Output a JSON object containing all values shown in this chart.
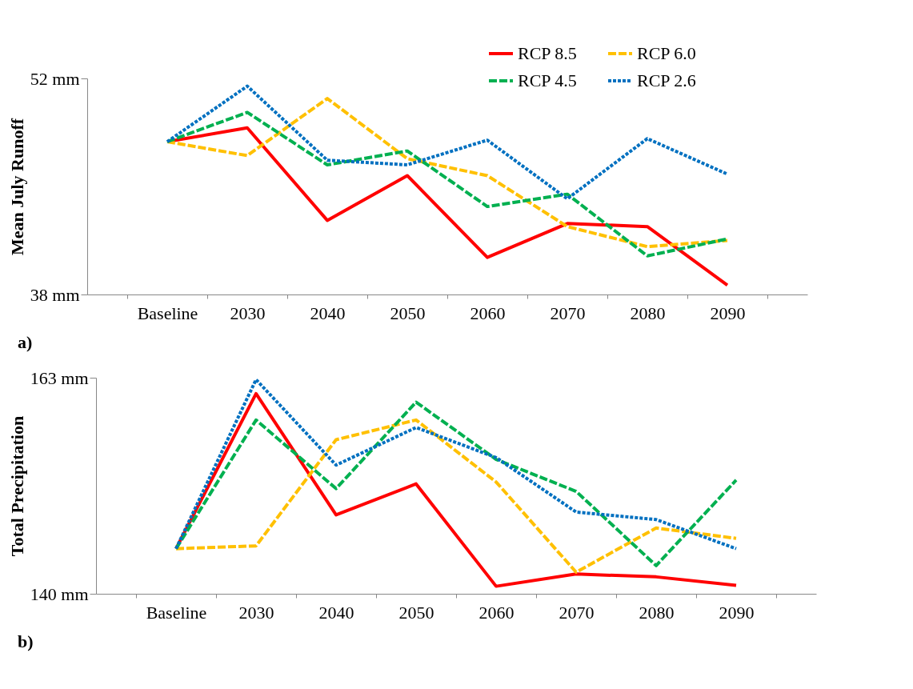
{
  "chart_data": [
    {
      "type": "line",
      "ylabel": "Mean July Runoff",
      "categories": [
        "Baseline",
        "2030",
        "2040",
        "2050",
        "2060",
        "2070",
        "2080",
        "2090"
      ],
      "ylim": [
        38,
        52
      ],
      "yticks": [
        {
          "value": 38,
          "label": "38 mm"
        },
        {
          "value": 52,
          "label": "52 mm"
        }
      ],
      "legend": "top right",
      "annotations": [
        "a)"
      ],
      "series": [
        {
          "name": "RCP 8.5",
          "color": "#ff0000",
          "line_style": "solid",
          "values": [
            47.9,
            48.8,
            42.8,
            45.7,
            40.4,
            42.6,
            42.4,
            38.6
          ]
        },
        {
          "name": "RCP 6.0",
          "color": "#ffc000",
          "line_style": "dashed",
          "values": [
            47.9,
            47.0,
            50.7,
            46.8,
            45.7,
            42.4,
            41.1,
            41.5
          ]
        },
        {
          "name": "RCP 4.5",
          "color": "#00b050",
          "line_style": "dashed",
          "values": [
            47.9,
            49.8,
            46.4,
            47.3,
            43.7,
            44.5,
            40.5,
            41.6
          ]
        },
        {
          "name": "RCP 2.6",
          "color": "#0070c0",
          "line_style": "dotted",
          "values": [
            47.9,
            51.5,
            46.7,
            46.4,
            48.0,
            44.2,
            48.1,
            45.8
          ]
        }
      ]
    },
    {
      "type": "line",
      "ylabel": "Total Precipitation",
      "categories": [
        "Baseline",
        "2030",
        "2040",
        "2050",
        "2060",
        "2070",
        "2080",
        "2090"
      ],
      "ylim": [
        140,
        163
      ],
      "yticks": [
        {
          "value": 140,
          "label": "140 mm"
        },
        {
          "value": 163,
          "label": "163 mm"
        }
      ],
      "annotations": [
        "b)"
      ],
      "series": [
        {
          "color": "#ff0000",
          "line_style": "solid",
          "values": [
            144.8,
            161.3,
            148.4,
            151.7,
            140.8,
            142.1,
            141.8,
            140.9
          ]
        },
        {
          "color": "#ffc000",
          "line_style": "dashed",
          "values": [
            144.8,
            145.1,
            156.4,
            158.5,
            151.9,
            142.3,
            147.0,
            145.9
          ]
        },
        {
          "color": "#00b050",
          "line_style": "dashed",
          "values": [
            144.8,
            158.5,
            151.2,
            160.4,
            154.3,
            150.9,
            143.0,
            152.1
          ]
        },
        {
          "color": "#0070c0",
          "line_style": "dotted",
          "values": [
            144.8,
            162.8,
            153.7,
            157.7,
            154.5,
            148.7,
            147.9,
            144.8
          ]
        }
      ]
    }
  ]
}
